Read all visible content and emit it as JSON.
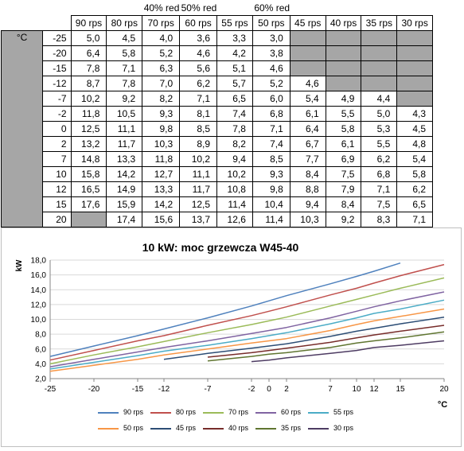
{
  "chart_data": [
    {
      "type": "table",
      "annotations": [
        {
          "col": 2,
          "text": "40% red"
        },
        {
          "col": 3,
          "text": "50% red"
        },
        {
          "col": 5,
          "text": "60% red"
        }
      ],
      "columns": [
        "90 rps",
        "80 rps",
        "70 rps",
        "60 rps",
        "55 rps",
        "50 rps",
        "45 rps",
        "40 rps",
        "35 rps",
        "30 rps"
      ],
      "unit_label": "°C",
      "rows": [
        {
          "label": "-25",
          "values": [
            "5,0",
            "4,5",
            "4,0",
            "3,6",
            "3,3",
            "3,0",
            null,
            null,
            null,
            null
          ]
        },
        {
          "label": "-20",
          "values": [
            "6,4",
            "5,8",
            "5,2",
            "4,6",
            "4,2",
            "3,8",
            null,
            null,
            null,
            null
          ]
        },
        {
          "label": "-15",
          "values": [
            "7,8",
            "7,1",
            "6,3",
            "5,6",
            "5,1",
            "4,6",
            null,
            null,
            null,
            null
          ]
        },
        {
          "label": "-12",
          "values": [
            "8,7",
            "7,8",
            "7,0",
            "6,2",
            "5,7",
            "5,2",
            "4,6",
            null,
            null,
            null
          ]
        },
        {
          "label": "-7",
          "values": [
            "10,2",
            "9,2",
            "8,2",
            "7,1",
            "6,5",
            "6,0",
            "5,4",
            "4,9",
            "4,4",
            null
          ]
        },
        {
          "label": "-2",
          "values": [
            "11,8",
            "10,5",
            "9,3",
            "8,1",
            "7,4",
            "6,8",
            "6,1",
            "5,5",
            "5,0",
            "4,3"
          ]
        },
        {
          "label": "0",
          "values": [
            "12,5",
            "11,1",
            "9,8",
            "8,5",
            "7,8",
            "7,1",
            "6,4",
            "5,8",
            "5,3",
            "4,5"
          ]
        },
        {
          "label": "2",
          "values": [
            "13,2",
            "11,7",
            "10,3",
            "8,9",
            "8,2",
            "7,4",
            "6,7",
            "6,1",
            "5,5",
            "4,8"
          ]
        },
        {
          "label": "7",
          "values": [
            "14,8",
            "13,3",
            "11,8",
            "10,2",
            "9,4",
            "8,5",
            "7,7",
            "6,9",
            "6,2",
            "5,4"
          ]
        },
        {
          "label": "10",
          "values": [
            "15,8",
            "14,2",
            "12,7",
            "11,1",
            "10,2",
            "9,3",
            "8,4",
            "7,5",
            "6,8",
            "5,8"
          ]
        },
        {
          "label": "12",
          "values": [
            "16,5",
            "14,9",
            "13,3",
            "11,7",
            "10,8",
            "9,8",
            "8,8",
            "7,9",
            "7,1",
            "6,2"
          ]
        },
        {
          "label": "15",
          "values": [
            "17,6",
            "15,9",
            "14,2",
            "12,5",
            "11,4",
            "10,4",
            "9,4",
            "8,4",
            "7,5",
            "6,5"
          ]
        },
        {
          "label": "20",
          "values": [
            null,
            "17,4",
            "15,6",
            "13,7",
            "12,6",
            "11,4",
            "10,3",
            "9,2",
            "8,3",
            "7,1"
          ]
        }
      ]
    },
    {
      "type": "line",
      "title": "10 kW: moc grzewcza W45-40",
      "ylabel": "kW",
      "xlabel": "°C",
      "x": [
        -25,
        -20,
        -15,
        -12,
        -7,
        -2,
        0,
        2,
        7,
        10,
        12,
        15,
        20
      ],
      "xlim": [
        -25,
        20
      ],
      "ylim": [
        2.0,
        18.0
      ],
      "xticks": [
        "-25",
        "-20",
        "-15",
        "-12",
        "-7",
        "-2",
        "0",
        "2",
        "7",
        "10",
        "12",
        "15",
        "20"
      ],
      "yticks": [
        "2,0",
        "4,0",
        "6,0",
        "8,0",
        "10,0",
        "12,0",
        "14,0",
        "16,0",
        "18,0"
      ],
      "grid": true,
      "legend_position": "bottom",
      "series": [
        {
          "name": "90 rps",
          "color": "#4f81bd",
          "values": [
            5.0,
            6.4,
            7.8,
            8.7,
            10.2,
            11.8,
            12.5,
            13.2,
            14.8,
            15.8,
            16.5,
            17.6,
            null
          ]
        },
        {
          "name": "80 rps",
          "color": "#c0504d",
          "values": [
            4.5,
            5.8,
            7.1,
            7.8,
            9.2,
            10.5,
            11.1,
            11.7,
            13.3,
            14.2,
            14.9,
            15.9,
            17.4
          ]
        },
        {
          "name": "70 rps",
          "color": "#9bbb59",
          "values": [
            4.0,
            5.2,
            6.3,
            7.0,
            8.2,
            9.3,
            9.8,
            10.3,
            11.8,
            12.7,
            13.3,
            14.2,
            15.6
          ]
        },
        {
          "name": "60 rps",
          "color": "#8064a2",
          "values": [
            3.6,
            4.6,
            5.6,
            6.2,
            7.1,
            8.1,
            8.5,
            8.9,
            10.2,
            11.1,
            11.7,
            12.5,
            13.7
          ]
        },
        {
          "name": "55 rps",
          "color": "#4bacc6",
          "values": [
            3.3,
            4.2,
            5.1,
            5.7,
            6.5,
            7.4,
            7.8,
            8.2,
            9.4,
            10.2,
            10.8,
            11.4,
            12.6
          ]
        },
        {
          "name": "50 rps",
          "color": "#f79646",
          "values": [
            3.0,
            3.8,
            4.6,
            5.2,
            6.0,
            6.8,
            7.1,
            7.4,
            8.5,
            9.3,
            9.8,
            10.4,
            11.4
          ]
        },
        {
          "name": "45 rps",
          "color": "#2c4d75",
          "values": [
            null,
            null,
            null,
            4.6,
            5.4,
            6.1,
            6.4,
            6.7,
            7.7,
            8.4,
            8.8,
            9.4,
            10.3
          ]
        },
        {
          "name": "40 rps",
          "color": "#772c2a",
          "values": [
            null,
            null,
            null,
            null,
            4.9,
            5.5,
            5.8,
            6.1,
            6.9,
            7.5,
            7.9,
            8.4,
            9.2
          ]
        },
        {
          "name": "35 rps",
          "color": "#5f7530",
          "values": [
            null,
            null,
            null,
            null,
            4.4,
            5.0,
            5.3,
            5.5,
            6.2,
            6.8,
            7.1,
            7.5,
            8.3
          ]
        },
        {
          "name": "30 rps",
          "color": "#4d3b62",
          "values": [
            null,
            null,
            null,
            null,
            null,
            4.3,
            4.5,
            4.8,
            5.4,
            5.8,
            6.2,
            6.5,
            7.1
          ]
        }
      ]
    }
  ]
}
